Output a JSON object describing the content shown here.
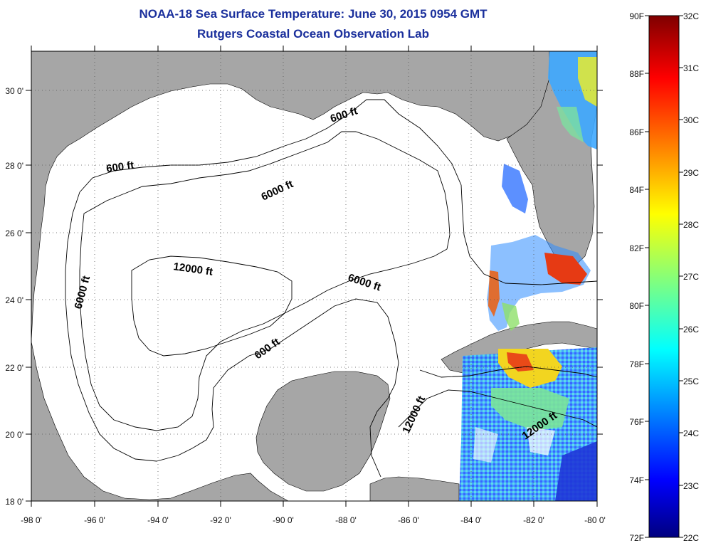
{
  "title": "NOAA-18 Sea Surface Temperature:  June 30, 2015 0954 GMT",
  "subtitle": "Rutgers Coastal Ocean Observation Lab",
  "map": {
    "lon_range": [
      -98,
      -80
    ],
    "lat_range": [
      18,
      31
    ],
    "lon_ticks": [
      "-98 0'",
      "-96 0'",
      "-94 0'",
      "-92 0'",
      "-90 0'",
      "-88 0'",
      "-86 0'",
      "-84 0'",
      "-82 0'",
      "-80 0'"
    ],
    "lat_ticks": [
      "18 0'",
      "20 0'",
      "22 0'",
      "24 0'",
      "26 0'",
      "28 0'",
      "30 0'"
    ],
    "land_color": "#a6a6a6",
    "ocean_color": "#ffffff",
    "grid": "dotted"
  },
  "contours": [
    "600 ft",
    "6000 ft",
    "12000 ft"
  ],
  "contour_labels": [
    "600 ft",
    "6000 ft",
    "12000 ft",
    "600 ft",
    "6000 ft",
    "6000 ft",
    "600 ft",
    "12000 ft",
    "12000 ft"
  ],
  "colorbar": {
    "f_labels": [
      "90F",
      "88F",
      "86F",
      "84F",
      "82F",
      "80F",
      "78F",
      "76F",
      "74F",
      "72F"
    ],
    "c_labels": [
      "32C",
      "31C",
      "30C",
      "29C",
      "28C",
      "27C",
      "26C",
      "25C",
      "24C",
      "23C",
      "22C"
    ],
    "c_range": [
      22,
      32
    ],
    "f_range": [
      72,
      90
    ],
    "colormap": "jet"
  }
}
